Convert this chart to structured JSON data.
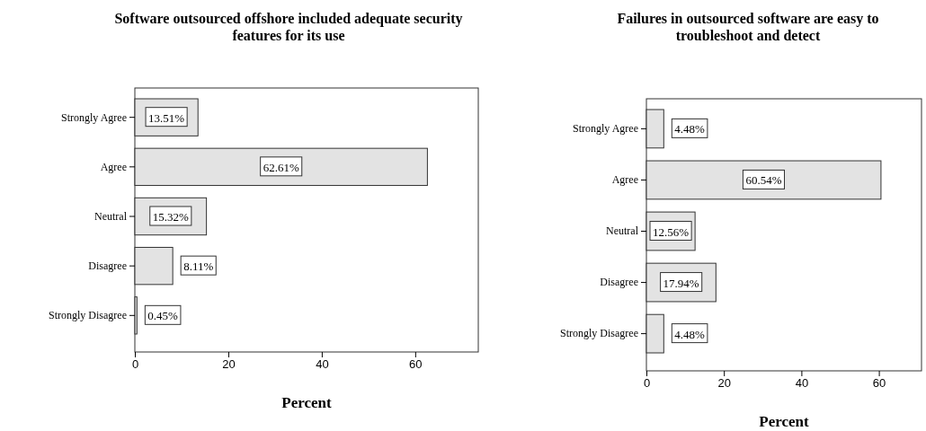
{
  "chart_data": [
    {
      "type": "bar",
      "orientation": "horizontal",
      "title": "Software outsourced offshore included adequate security features for its use",
      "xlabel": "Percent",
      "categories": [
        "Strongly Agree",
        "Agree",
        "Neutral",
        "Disagree",
        "Strongly Disagree"
      ],
      "values": [
        13.51,
        62.61,
        15.32,
        8.11,
        0.45
      ],
      "value_labels": [
        "13.51%",
        "62.61%",
        "15.32%",
        "8.11%",
        "0.45%"
      ],
      "color": "#e3e3e3",
      "xlim": [
        0,
        73.5
      ],
      "xticks": [
        0,
        20,
        40,
        60
      ],
      "grid": false
    },
    {
      "type": "bar",
      "orientation": "horizontal",
      "title": "Failures in outsourced software are easy to troubleshoot and detect",
      "xlabel": "Percent",
      "categories": [
        "Strongly Agree",
        "Agree",
        "Neutral",
        "Disagree",
        "Strongly Disagree"
      ],
      "values": [
        4.48,
        60.54,
        12.56,
        17.94,
        4.48
      ],
      "value_labels": [
        "4.48%",
        "60.54%",
        "12.56%",
        "17.94%",
        "4.48%"
      ],
      "color": "#e3e3e3",
      "xlim": [
        0,
        71
      ],
      "xticks": [
        0,
        20,
        40,
        60
      ],
      "grid": false
    }
  ]
}
